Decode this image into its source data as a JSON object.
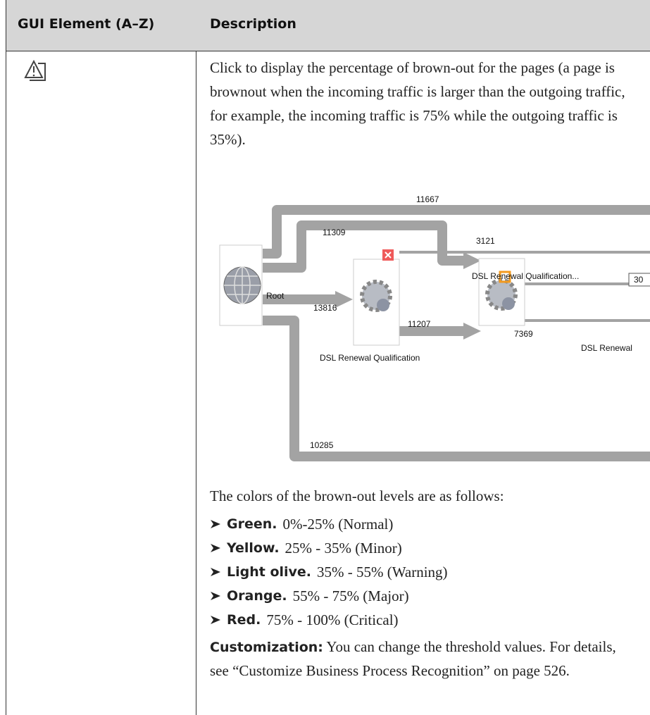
{
  "table": {
    "headers": [
      "GUI Element (A–Z)",
      "Description"
    ],
    "rows": [
      {
        "description": "Click to display the percentage of brown-out for the pages (a page is brownout when the incoming traffic is larger than the outgoing traffic, for example, the incoming traffic is 75% while the outgoing traffic is 35%).",
        "diagram": {
          "labels": [
            "11667",
            "11309",
            "3121",
            "DSL Renewal Qualification...",
            "30",
            "Root",
            "13816",
            "11207",
            "7369",
            "DSL Renewal",
            "DSL Renewal Qualification",
            "10285"
          ]
        },
        "intro": "The colors of the brown-out levels are as follows:",
        "levels": [
          {
            "name": "Green.",
            "range": "0%-25% (Normal)"
          },
          {
            "name": "Yellow.",
            "range": "25% - 35% (Minor)"
          },
          {
            "name": "Light olive.",
            "range": "35% - 55% (Warning)"
          },
          {
            "name": "Orange.",
            "range": "55% - 75% (Major)"
          },
          {
            "name": "Red.",
            "range": "75% - 100% (Critical)"
          }
        ],
        "customization": {
          "label": "Customization:",
          "text": "You can change the threshold values. For details, see “Customize Business Process Recognition” on page 526."
        }
      }
    ]
  }
}
